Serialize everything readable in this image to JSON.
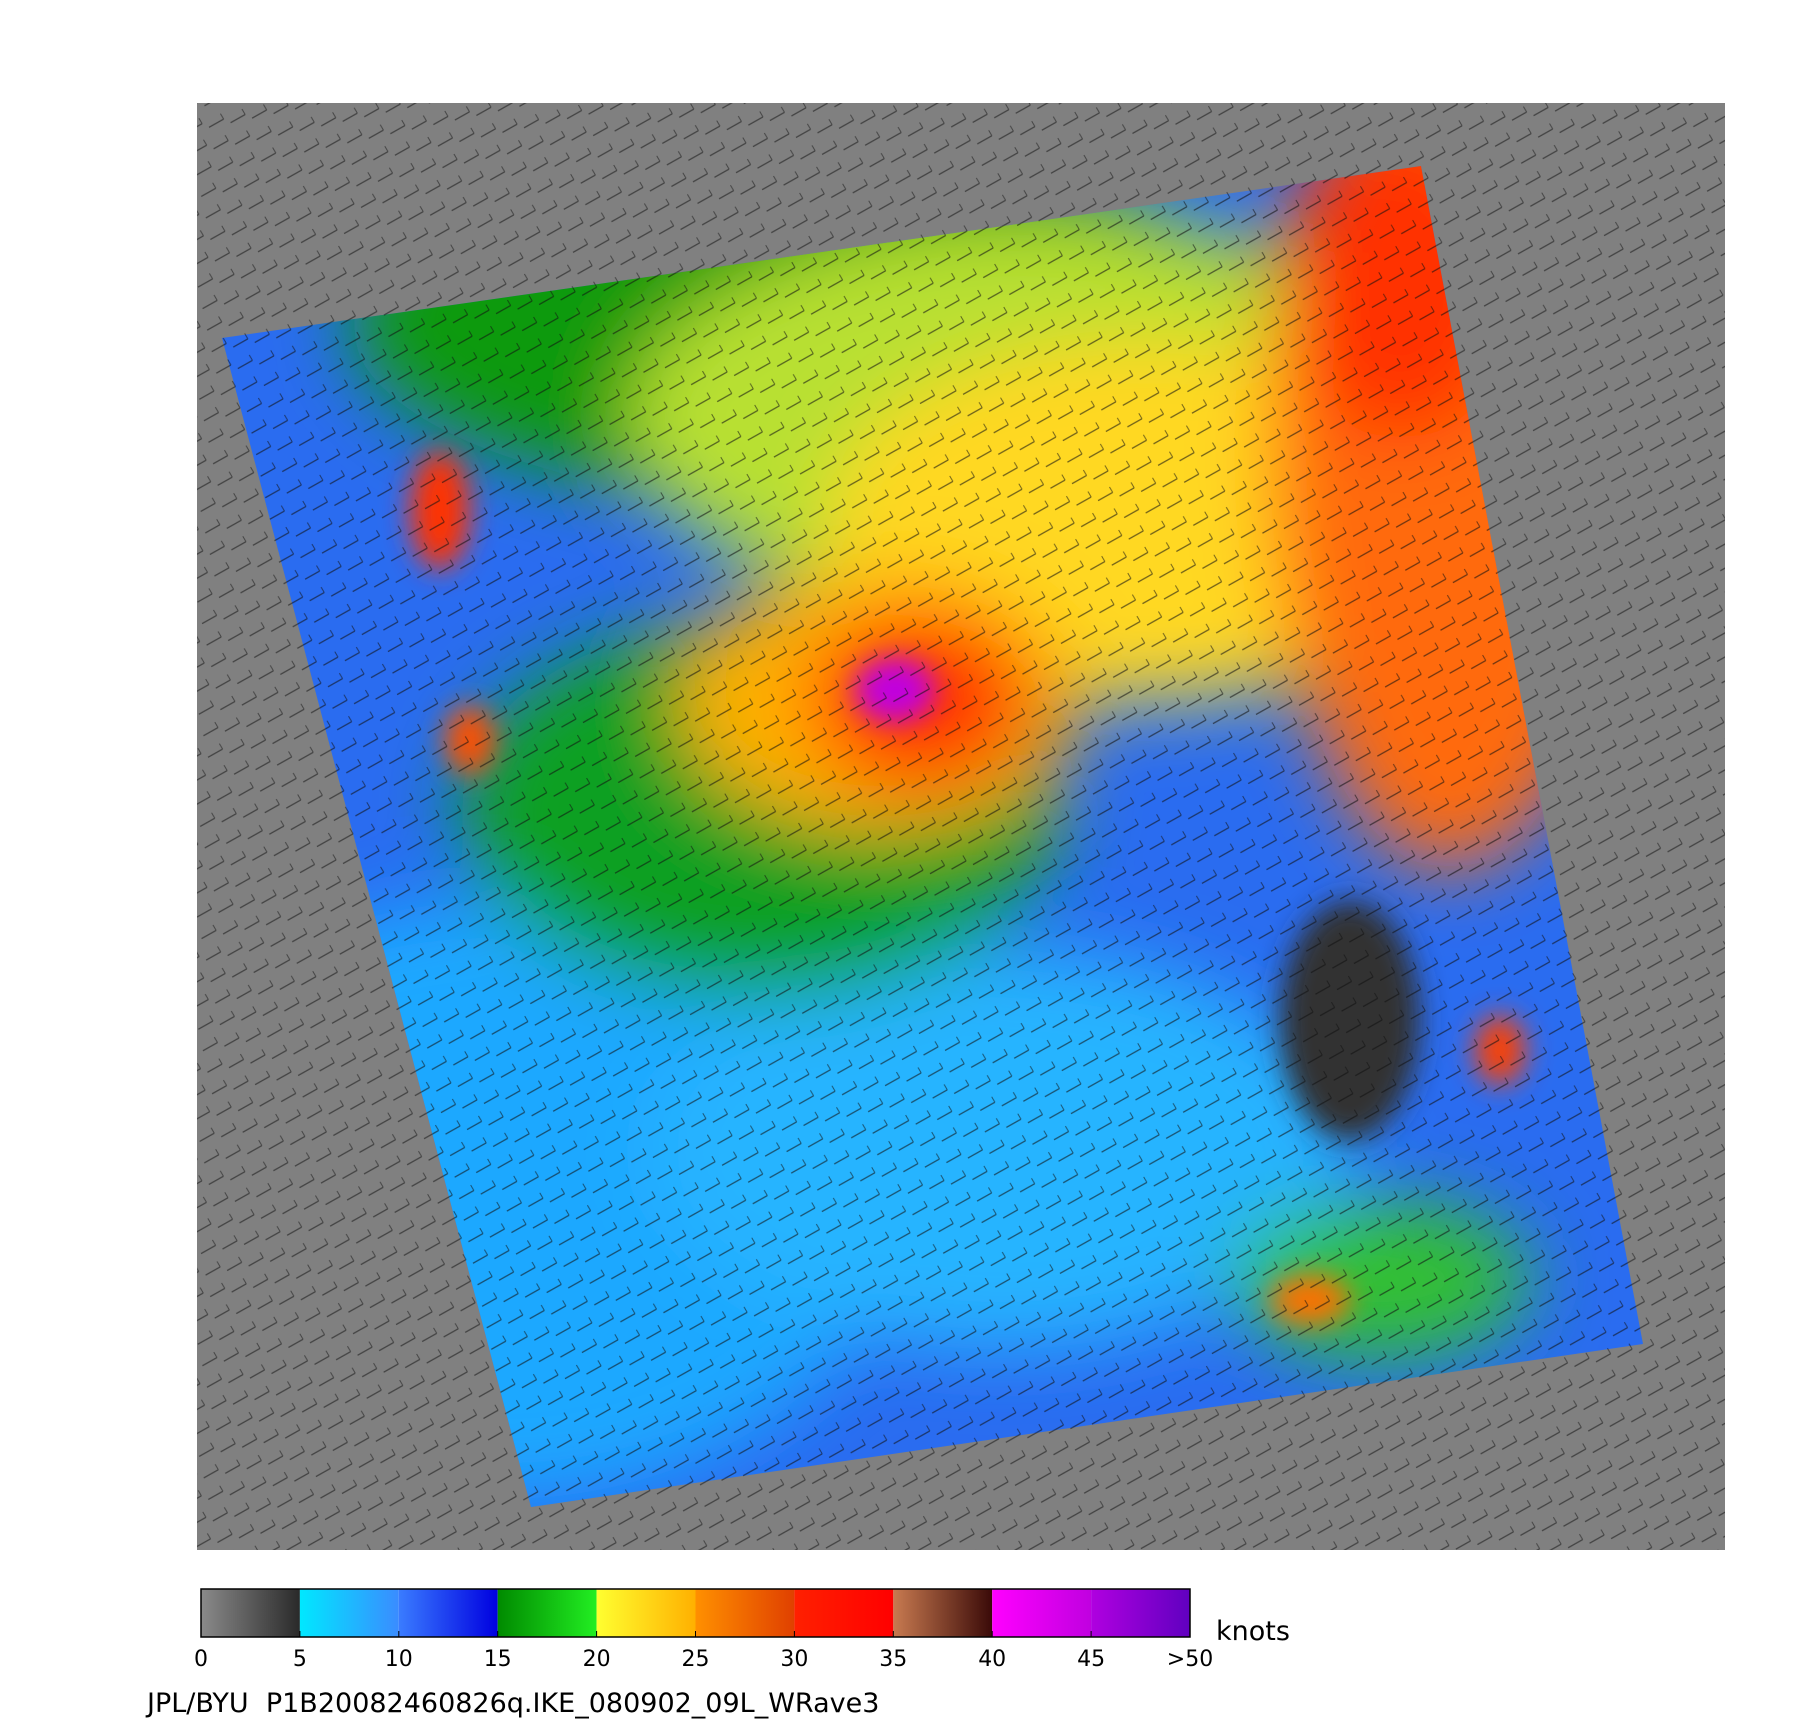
{
  "colorbar": {
    "range": [
      0,
      50
    ],
    "ticks": [
      0,
      5,
      10,
      15,
      20,
      25,
      30,
      35,
      40,
      45,
      {
        "value": 50,
        "label": ">50"
      }
    ],
    "unit": "knots",
    "bands": [
      {
        "start": 0,
        "end": 5,
        "colors": [
          "#8a8a8a",
          "#2a2a2a"
        ]
      },
      {
        "start": 5,
        "end": 10,
        "colors": [
          "#00e8ff",
          "#3a8cff"
        ]
      },
      {
        "start": 10,
        "end": 15,
        "colors": [
          "#3a7cff",
          "#0000e0"
        ]
      },
      {
        "start": 15,
        "end": 20,
        "colors": [
          "#008a00",
          "#22ee22"
        ]
      },
      {
        "start": 20,
        "end": 25,
        "colors": [
          "#ffff30",
          "#ffb000"
        ]
      },
      {
        "start": 25,
        "end": 30,
        "colors": [
          "#ff9000",
          "#e04000"
        ]
      },
      {
        "start": 30,
        "end": 35,
        "colors": [
          "#ff2000",
          "#ff0000"
        ]
      },
      {
        "start": 35,
        "end": 40,
        "colors": [
          "#c87a50",
          "#3a0a08"
        ]
      },
      {
        "start": 40,
        "end": 45,
        "colors": [
          "#ff00ff",
          "#c000e0"
        ]
      },
      {
        "start": 45,
        "end": 50,
        "colors": [
          "#b000e0",
          "#6000c0"
        ]
      }
    ]
  },
  "footer": "JPL/BYU  P1B20082460826q.IKE_080902_09L_WRave3"
}
